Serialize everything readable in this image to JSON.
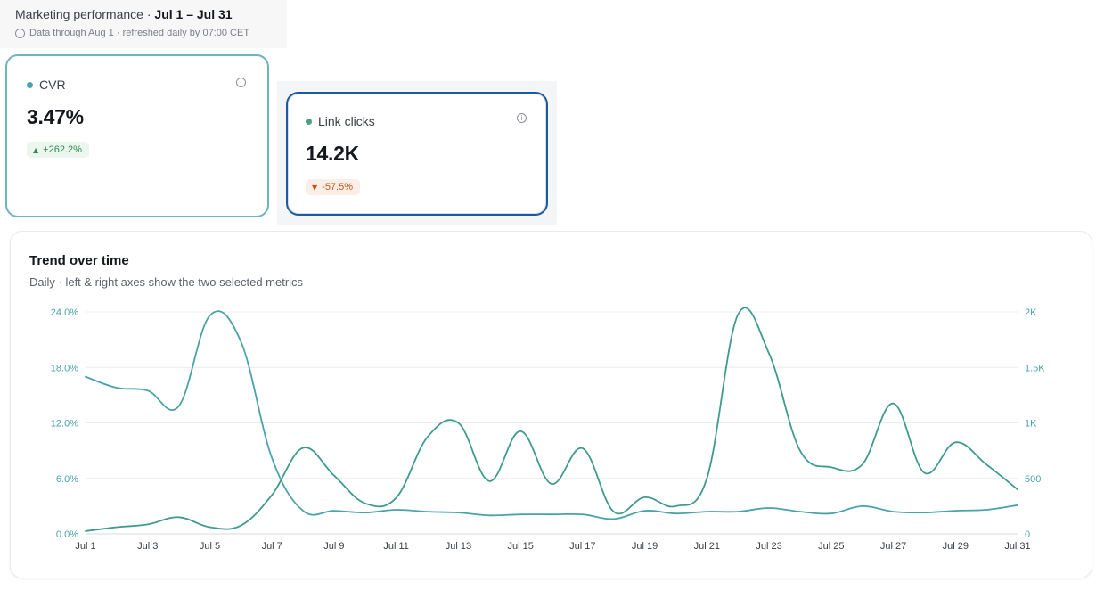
{
  "header": {
    "title_prefix": "Marketing performance · ",
    "range": "Jul 1 – Jul 31",
    "info_glyph": "i",
    "subtitle": "Data through Aug 1 · refreshed daily by 07:00 CET"
  },
  "kpis": {
    "cvr": {
      "label": "CVR",
      "value": "3.47%",
      "change": "+262.2%",
      "direction": "up",
      "dot_color": "#4aa3a8"
    },
    "clicks": {
      "label": "Link clicks",
      "value": "14.2K",
      "change": "-57.5%",
      "direction": "down",
      "dot_color": "#4aa37a"
    }
  },
  "colors": {
    "series_cvr": "#4aa3a8",
    "series_clicks": "#3f9b8e",
    "grid": "#e9ecef",
    "accent_selected": "#1e5a99"
  },
  "chart": {
    "title": "Trend over time",
    "subtitle": "Daily · left & right axes show the two selected metrics"
  },
  "chart_data": {
    "type": "line",
    "title": "Trend over time",
    "x": [
      "Jul 1",
      "Jul 2",
      "Jul 3",
      "Jul 4",
      "Jul 5",
      "Jul 6",
      "Jul 7",
      "Jul 8",
      "Jul 9",
      "Jul 10",
      "Jul 11",
      "Jul 12",
      "Jul 13",
      "Jul 14",
      "Jul 15",
      "Jul 16",
      "Jul 17",
      "Jul 18",
      "Jul 19",
      "Jul 20",
      "Jul 21",
      "Jul 22",
      "Jul 23",
      "Jul 24",
      "Jul 25",
      "Jul 26",
      "Jul 27",
      "Jul 28",
      "Jul 29",
      "Jul 30",
      "Jul 31"
    ],
    "x_tick_labels": [
      "Jul 1",
      "Jul 3",
      "Jul 5",
      "Jul 7",
      "Jul 9",
      "Jul 11",
      "Jul 13",
      "Jul 15",
      "Jul 17",
      "Jul 19",
      "Jul 21",
      "Jul 23",
      "Jul 25",
      "Jul 27",
      "Jul 29",
      "Jul 31"
    ],
    "series": [
      {
        "axis": "left",
        "values": [
          17.0,
          15.8,
          15.5,
          13.8,
          23.6,
          20.8,
          8.2,
          2.5,
          2.5,
          2.3,
          2.6,
          2.4,
          2.3,
          2.0,
          2.1,
          2.1,
          2.1,
          1.6,
          2.5,
          2.2,
          2.4,
          2.4,
          2.8,
          2.4,
          2.2,
          3.0,
          2.4,
          2.3,
          2.5,
          2.6,
          3.1
        ]
      },
      {
        "axis": "right",
        "values": [
          25,
          60,
          85,
          150,
          60,
          75,
          350,
          775,
          525,
          275,
          325,
          870,
          1000,
          475,
          925,
          450,
          770,
          200,
          330,
          250,
          500,
          1975,
          1625,
          750,
          600,
          625,
          1175,
          550,
          825,
          625,
          400
        ]
      }
    ],
    "left_axis": {
      "ticks": [
        "0.0%",
        "6.0%",
        "12.0%",
        "18.0%",
        "24.0%"
      ],
      "range": [
        0,
        24
      ]
    },
    "right_axis": {
      "ticks": [
        "0",
        "500",
        "1K",
        "1.5K",
        "2K"
      ],
      "range": [
        0,
        2000
      ]
    },
    "grid": true
  }
}
